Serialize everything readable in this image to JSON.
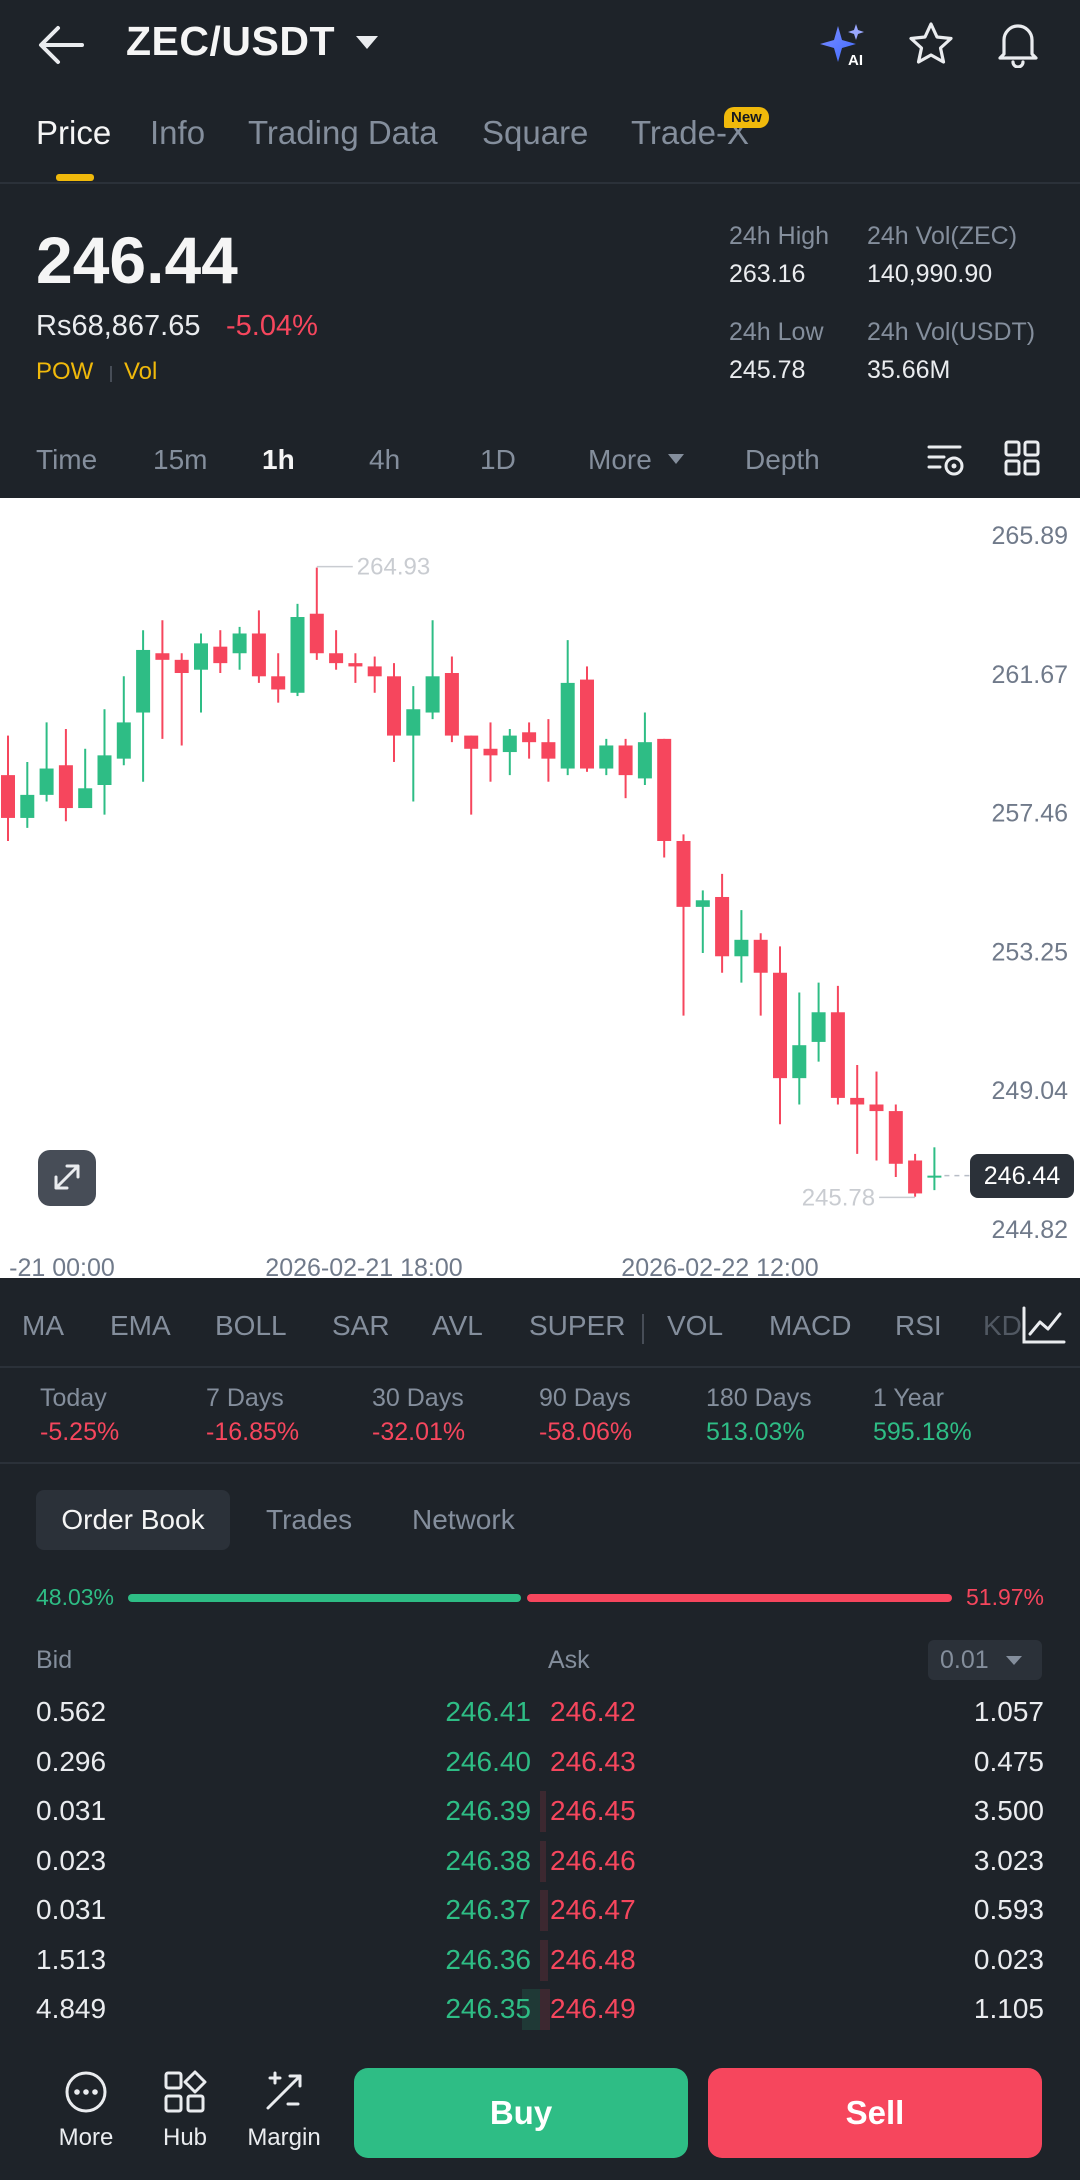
{
  "header": {
    "pair": "ZEC/USDT",
    "ai_label": "AI"
  },
  "tabs": [
    {
      "label": "Price",
      "active": true
    },
    {
      "label": "Info"
    },
    {
      "label": "Trading Data"
    },
    {
      "label": "Square"
    },
    {
      "label": "Trade-X",
      "badge": "New"
    }
  ],
  "price": {
    "last": "246.44",
    "fiat": "Rs68,867.65",
    "change_pct": "-5.04%",
    "tags": [
      "POW",
      "Vol"
    ]
  },
  "stats": {
    "high_label": "24h High",
    "high_value": "263.16",
    "vol_base_label": "24h Vol(ZEC)",
    "vol_base_value": "140,990.90",
    "low_label": "24h Low",
    "low_value": "245.78",
    "vol_quote_label": "24h Vol(USDT)",
    "vol_quote_value": "35.66M"
  },
  "intervals": [
    {
      "label": "Time"
    },
    {
      "label": "15m"
    },
    {
      "label": "1h",
      "active": true
    },
    {
      "label": "4h"
    },
    {
      "label": "1D"
    },
    {
      "label": "More"
    },
    {
      "label": "Depth"
    }
  ],
  "chart_data": {
    "type": "candlestick",
    "y_ticks": [
      "265.89",
      "261.67",
      "257.46",
      "253.25",
      "249.04",
      "244.82"
    ],
    "ylim": [
      244.82,
      265.89
    ],
    "x_ticks": [
      "-21 00:00",
      "2026-02-21 18:00",
      "2026-02-22 12:00"
    ],
    "high_marker": "264.93",
    "low_marker": "245.78",
    "last_price": "246.44",
    "candles": [
      [
        258.6,
        257.3,
        259.8,
        256.6
      ],
      [
        257.3,
        258.0,
        259.0,
        257.0
      ],
      [
        258.0,
        258.8,
        260.2,
        257.8
      ],
      [
        258.9,
        257.6,
        260.0,
        257.2
      ],
      [
        257.6,
        258.2,
        259.4,
        257.8
      ],
      [
        258.3,
        259.2,
        260.6,
        257.4
      ],
      [
        259.1,
        260.2,
        261.6,
        258.9
      ],
      [
        260.5,
        262.4,
        263.0,
        258.4
      ],
      [
        262.3,
        262.1,
        263.3,
        259.7
      ],
      [
        262.1,
        261.7,
        262.3,
        259.5
      ],
      [
        261.8,
        262.6,
        262.9,
        260.5
      ],
      [
        262.5,
        262.0,
        263.0,
        261.7
      ],
      [
        262.3,
        262.9,
        263.1,
        261.8
      ],
      [
        262.9,
        261.6,
        263.6,
        261.4
      ],
      [
        261.6,
        261.2,
        262.3,
        260.8
      ],
      [
        261.1,
        263.4,
        263.8,
        261.0
      ],
      [
        263.5,
        262.3,
        264.9,
        262.1
      ],
      [
        262.3,
        262.0,
        263.0,
        261.8
      ],
      [
        262.0,
        261.9,
        262.3,
        261.4
      ],
      [
        261.9,
        261.6,
        262.2,
        261.1
      ],
      [
        261.6,
        259.8,
        262.0,
        259.0
      ],
      [
        259.8,
        260.6,
        261.3,
        257.8
      ],
      [
        260.5,
        261.6,
        263.3,
        260.3
      ],
      [
        261.7,
        259.8,
        262.2,
        259.6
      ],
      [
        259.8,
        259.4,
        259.8,
        257.4
      ],
      [
        259.4,
        259.2,
        260.2,
        258.4
      ],
      [
        259.3,
        259.8,
        260.0,
        258.6
      ],
      [
        259.9,
        259.6,
        260.2,
        259.1
      ],
      [
        259.6,
        259.1,
        260.3,
        258.4
      ],
      [
        258.8,
        261.4,
        262.7,
        258.6
      ],
      [
        261.5,
        258.8,
        261.9,
        258.7
      ],
      [
        258.8,
        259.5,
        259.7,
        258.6
      ],
      [
        259.5,
        258.6,
        259.7,
        257.9
      ],
      [
        258.5,
        259.6,
        260.5,
        258.3
      ],
      [
        259.7,
        256.6,
        259.7,
        256.1
      ],
      [
        256.6,
        254.6,
        256.8,
        251.3
      ],
      [
        254.6,
        254.8,
        255.1,
        253.2
      ],
      [
        254.9,
        253.1,
        255.6,
        252.6
      ],
      [
        253.1,
        253.6,
        254.5,
        252.3
      ],
      [
        253.6,
        252.6,
        253.8,
        251.3
      ],
      [
        252.6,
        249.4,
        253.4,
        248.0
      ],
      [
        249.4,
        250.4,
        252.0,
        248.6
      ],
      [
        250.5,
        251.4,
        252.3,
        249.9
      ],
      [
        251.4,
        248.8,
        252.2,
        248.6
      ],
      [
        248.8,
        248.6,
        249.8,
        247.1
      ],
      [
        248.6,
        248.4,
        249.6,
        246.9
      ],
      [
        248.4,
        246.8,
        248.6,
        246.4
      ],
      [
        246.9,
        245.9,
        247.1,
        245.8
      ],
      [
        246.4,
        246.44,
        247.3,
        246.0
      ]
    ]
  },
  "indicators": [
    "MA",
    "EMA",
    "BOLL",
    "SAR",
    "AVL",
    "SUPER",
    "VOL",
    "MACD",
    "RSI",
    "KD"
  ],
  "performance": [
    {
      "label": "Today",
      "value": "-5.25%",
      "dir": "neg"
    },
    {
      "label": "7 Days",
      "value": "-16.85%",
      "dir": "neg"
    },
    {
      "label": "30 Days",
      "value": "-32.01%",
      "dir": "neg"
    },
    {
      "label": "90 Days",
      "value": "-58.06%",
      "dir": "neg"
    },
    {
      "label": "180 Days",
      "value": "513.03%",
      "dir": "pos"
    },
    {
      "label": "1 Year",
      "value": "595.18%",
      "dir": "pos"
    }
  ],
  "orderbook": {
    "tabs": [
      "Order Book",
      "Trades",
      "Network"
    ],
    "bid_pct": "48.03%",
    "ask_pct": "51.97%",
    "bid_ratio": 0.4803,
    "bid_label": "Bid",
    "ask_label": "Ask",
    "precision": "0.01",
    "rows": [
      {
        "bid_qty": "0.562",
        "bid_price": "246.41",
        "ask_price": "246.42",
        "ask_qty": "1.057"
      },
      {
        "bid_qty": "0.296",
        "bid_price": "246.40",
        "ask_price": "246.43",
        "ask_qty": "0.475"
      },
      {
        "bid_qty": "0.031",
        "bid_price": "246.39",
        "ask_price": "246.45",
        "ask_qty": "3.500"
      },
      {
        "bid_qty": "0.023",
        "bid_price": "246.38",
        "ask_price": "246.46",
        "ask_qty": "3.023"
      },
      {
        "bid_qty": "0.031",
        "bid_price": "246.37",
        "ask_price": "246.47",
        "ask_qty": "0.593"
      },
      {
        "bid_qty": "1.513",
        "bid_price": "246.36",
        "ask_price": "246.48",
        "ask_qty": "0.023"
      },
      {
        "bid_qty": "4.849",
        "bid_price": "246.35",
        "ask_price": "246.49",
        "ask_qty": "1.105"
      }
    ]
  },
  "bottom_nav": [
    {
      "label": "More",
      "icon": "more-icon"
    },
    {
      "label": "Hub",
      "icon": "hub-icon"
    },
    {
      "label": "Margin",
      "icon": "margin-icon"
    }
  ],
  "actions": {
    "buy_label": "Buy",
    "sell_label": "Sell"
  },
  "colors": {
    "background": "#1e2329",
    "accent": "#f0b90b",
    "up": "#2ebd85",
    "down": "#f6465d",
    "muted": "#848e9c"
  }
}
